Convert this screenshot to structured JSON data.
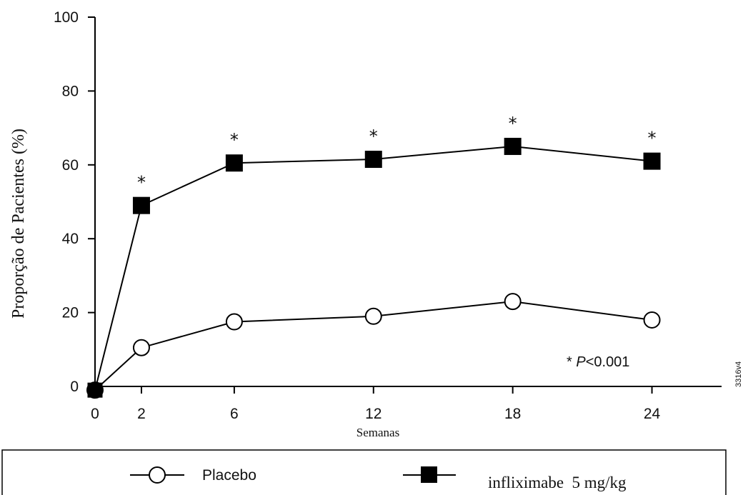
{
  "chart_data": {
    "type": "line",
    "title": "",
    "xlabel": "Semanas",
    "ylabel": "Proporção de Pacientes (%)",
    "x": [
      0,
      2,
      6,
      12,
      18,
      24
    ],
    "xticks": [
      "0",
      "2",
      "6",
      "12",
      "18",
      "24"
    ],
    "yticks": [
      "0",
      "20",
      "40",
      "60",
      "80",
      "100"
    ],
    "xlim": [
      0,
      27
    ],
    "ylim": [
      0,
      100
    ],
    "grid": false,
    "legend_position": "bottom",
    "series": [
      {
        "name": "Placebo",
        "marker": "open-circle",
        "values": [
          -1,
          10.5,
          17.5,
          19,
          23,
          18
        ]
      },
      {
        "name": "infliximabe  5 mg/kg",
        "marker": "filled-square",
        "values": [
          -1,
          49,
          60.5,
          61.5,
          65,
          61
        ]
      }
    ],
    "significance_marks": {
      "series": "infliximabe  5 mg/kg",
      "x": [
        2,
        6,
        12,
        18,
        24
      ],
      "symbol": "*"
    },
    "annotation": {
      "star": "*",
      "p": "P",
      "rest": "<0.001"
    },
    "side_code": "3316v4"
  }
}
